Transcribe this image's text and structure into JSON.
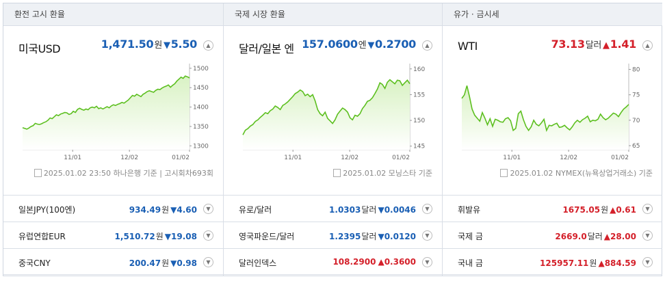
{
  "panels": [
    {
      "tab": "환전 고시 환율",
      "main": {
        "name": "미국USD",
        "price": "1,471.50",
        "unit": "원",
        "dir": "down",
        "change": "5.50"
      },
      "source": "2025.01.02 23:50 하나은행 기준 | 고시회차693회",
      "rows": [
        {
          "name": "일본JPY(100엔)",
          "price": "934.49",
          "unit": "원",
          "dir": "down",
          "change": "4.60"
        },
        {
          "name": "유럽연합EUR",
          "price": "1,510.72",
          "unit": "원",
          "dir": "down",
          "change": "19.08"
        },
        {
          "name": "중국CNY",
          "price": "200.47",
          "unit": "원",
          "dir": "down",
          "change": "0.98"
        }
      ]
    },
    {
      "tab": "국제 시장 환율",
      "main": {
        "name": "달러/일본 엔",
        "price": "157.0600",
        "unit": "엔",
        "dir": "down",
        "change": "0.2700"
      },
      "source": "2025.01.02 모닝스타 기준",
      "rows": [
        {
          "name": "유로/달러",
          "price": "1.0303",
          "unit": "달러",
          "dir": "down",
          "change": "0.0046"
        },
        {
          "name": "영국파운드/달러",
          "price": "1.2395",
          "unit": "달러",
          "dir": "down",
          "change": "0.0120"
        },
        {
          "name": "달러인덱스",
          "price": "108.2900",
          "unit": "",
          "dir": "up",
          "change": "0.3600"
        }
      ]
    },
    {
      "tab": "유가 · 금시세",
      "main": {
        "name": "WTI",
        "price": "73.13",
        "unit": "달러",
        "dir": "up",
        "change": "1.41"
      },
      "source": "2025.01.02 NYMEX(뉴욕상업거래소) 기준",
      "rows": [
        {
          "name": "휘발유",
          "price": "1675.05",
          "unit": "원",
          "dir": "up",
          "change": "0.61"
        },
        {
          "name": "국제 금",
          "price": "2669.0",
          "unit": "달러",
          "dir": "up",
          "change": "28.00"
        },
        {
          "name": "국내 금",
          "price": "125957.11",
          "unit": "원",
          "dir": "up",
          "change": "884.59"
        }
      ]
    }
  ],
  "arrows": {
    "up": "▲",
    "down": "▼"
  },
  "colors": {
    "up": "#d4202a",
    "down": "#1a5fb4",
    "line": "#5cbf1f",
    "fill": "#d9f2c4"
  },
  "chart_data": [
    {
      "type": "area",
      "x_ticks": [
        "11/01",
        "12/02",
        "01/02"
      ],
      "y_ticks": [
        1300,
        1350,
        1400,
        1450,
        1500
      ],
      "ylim": [
        1290,
        1505
      ],
      "values": [
        1347,
        1345,
        1343,
        1346,
        1350,
        1352,
        1358,
        1356,
        1355,
        1357,
        1360,
        1362,
        1366,
        1372,
        1370,
        1375,
        1380,
        1378,
        1382,
        1384,
        1386,
        1385,
        1381,
        1383,
        1389,
        1386,
        1394,
        1397,
        1394,
        1392,
        1395,
        1393,
        1398,
        1400,
        1398,
        1402,
        1396,
        1398,
        1395,
        1398,
        1401,
        1398,
        1403,
        1406,
        1404,
        1407,
        1409,
        1412,
        1410,
        1414,
        1418,
        1424,
        1430,
        1428,
        1433,
        1430,
        1427,
        1433,
        1436,
        1440,
        1442,
        1440,
        1438,
        1443,
        1446,
        1445,
        1449,
        1452,
        1454,
        1457,
        1451,
        1456,
        1460,
        1467,
        1472,
        1477,
        1474,
        1480,
        1478,
        1475
      ]
    },
    {
      "type": "area",
      "x_ticks": [
        "11/01",
        "12/02",
        "01/02"
      ],
      "y_ticks": [
        145,
        150,
        155,
        160
      ],
      "ylim": [
        144.3,
        160.5
      ],
      "values": [
        147.2,
        148.1,
        148.4,
        148.9,
        149.2,
        149.8,
        150.1,
        150.6,
        151.0,
        151.5,
        151.3,
        151.9,
        152.2,
        152.8,
        152.5,
        152.1,
        152.9,
        153.2,
        153.6,
        154.1,
        154.6,
        155.2,
        155.5,
        155.9,
        155.6,
        154.8,
        155.1,
        154.6,
        155.0,
        153.8,
        152.1,
        151.3,
        150.9,
        151.6,
        150.4,
        149.9,
        149.4,
        150.1,
        151.2,
        151.8,
        152.4,
        152.1,
        151.6,
        150.5,
        150.1,
        151.0,
        150.8,
        151.3,
        152.3,
        152.9,
        153.7,
        153.9,
        154.4,
        155.2,
        156.1,
        157.3,
        157.0,
        156.2,
        157.4,
        157.9,
        157.5,
        157.1,
        157.8,
        157.7,
        156.8,
        157.3,
        157.8,
        157.1
      ]
    },
    {
      "type": "area",
      "x_ticks": [
        "11/01",
        "12/02",
        "01/02"
      ],
      "y_ticks": [
        65,
        70,
        75,
        80
      ],
      "ylim": [
        64.2,
        80.6
      ],
      "values": [
        74.3,
        75.0,
        76.8,
        74.6,
        72.2,
        71.0,
        70.4,
        69.8,
        71.5,
        70.4,
        69.1,
        70.3,
        68.8,
        70.2,
        70.0,
        69.7,
        69.6,
        70.3,
        70.5,
        69.9,
        68.0,
        68.4,
        71.3,
        71.8,
        70.1,
        68.8,
        68.0,
        68.7,
        70.0,
        69.2,
        68.9,
        69.5,
        70.2,
        68.0,
        69.0,
        68.9,
        69.2,
        69.4,
        68.6,
        68.7,
        69.0,
        68.5,
        68.1,
        68.7,
        69.5,
        70.0,
        69.6,
        70.1,
        70.4,
        70.8,
        69.7,
        70.0,
        69.9,
        70.2,
        71.2,
        70.5,
        70.1,
        70.4,
        70.9,
        71.4,
        71.2,
        70.7,
        71.5,
        72.2,
        72.6,
        73.1
      ]
    }
  ]
}
